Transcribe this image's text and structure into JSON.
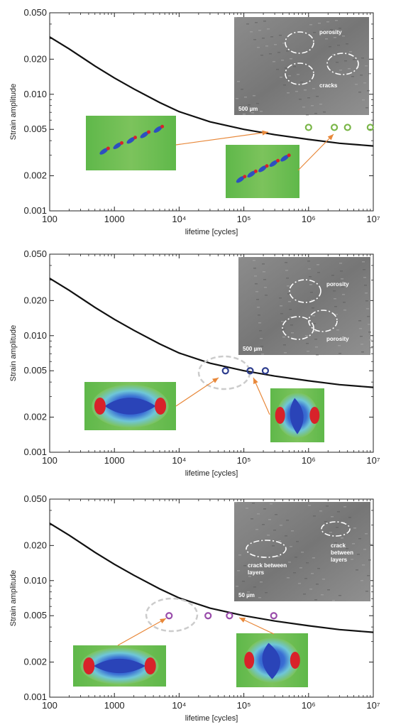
{
  "colors": {
    "curve": "#111111",
    "panel1_markers": "#7ab648",
    "panel2_markers": "#2f3f8f",
    "panel3_markers": "#9a4dab",
    "arrow": "#e8883a",
    "highlight_ellipse": "#cccccc"
  },
  "chart_data": [
    {
      "type": "scatter",
      "xscale": "log",
      "yscale": "log",
      "xlim": [
        100,
        10000000
      ],
      "ylim": [
        0.001,
        0.05
      ],
      "xlabel": "lifetime [cycles]",
      "ylabel": "Strain amplitude",
      "x_tick_labels": [
        "100",
        "1000",
        "10⁴",
        "10⁵",
        "10⁶",
        "10⁷"
      ],
      "y_tick_labels": [
        "0.001",
        "0.002",
        "0.005",
        "0.010",
        "0.020",
        "0.050"
      ],
      "curve": {
        "x": [
          100,
          200,
          500,
          1000,
          2000,
          5000,
          10000,
          30000,
          100000,
          300000,
          1000000,
          3000000,
          10000000
        ],
        "y": [
          0.031,
          0.0245,
          0.0175,
          0.0138,
          0.0111,
          0.0085,
          0.0071,
          0.0058,
          0.005,
          0.0045,
          0.0041,
          0.0038,
          0.0036
        ]
      },
      "points": {
        "x": [
          1000000,
          2500000,
          4000000,
          9000000
        ],
        "y": [
          0.0052,
          0.0052,
          0.0052,
          0.0052
        ]
      },
      "micrograph_annotations": [
        "porosity",
        "cracks"
      ],
      "scale_bar": "500 µm"
    },
    {
      "type": "scatter",
      "xscale": "log",
      "yscale": "log",
      "xlim": [
        100,
        10000000
      ],
      "ylim": [
        0.001,
        0.05
      ],
      "xlabel": "lifetime [cycles]",
      "ylabel": "Strain amplitude",
      "x_tick_labels": [
        "100",
        "1000",
        "10⁴",
        "10⁵",
        "10⁶",
        "10⁷"
      ],
      "y_tick_labels": [
        "0.001",
        "0.002",
        "0.005",
        "0.010",
        "0.020",
        "0.050"
      ],
      "curve": {
        "x": [
          100,
          200,
          500,
          1000,
          2000,
          5000,
          10000,
          30000,
          100000,
          300000,
          1000000,
          3000000,
          10000000
        ],
        "y": [
          0.031,
          0.0245,
          0.0175,
          0.0138,
          0.0111,
          0.0085,
          0.0071,
          0.0058,
          0.005,
          0.0045,
          0.0041,
          0.0038,
          0.0036
        ]
      },
      "points": {
        "x": [
          52000,
          125000,
          215000
        ],
        "y": [
          0.005,
          0.005,
          0.005
        ]
      },
      "micrograph_annotations": [
        "porosity",
        "porosity"
      ],
      "scale_bar": "500 µm"
    },
    {
      "type": "scatter",
      "xscale": "log",
      "yscale": "log",
      "xlim": [
        100,
        10000000
      ],
      "ylim": [
        0.001,
        0.05
      ],
      "xlabel": "lifetime [cycles]",
      "ylabel": "Strain amplitude",
      "x_tick_labels": [
        "100",
        "1000",
        "10⁴",
        "10⁵",
        "10⁶",
        "10⁷"
      ],
      "y_tick_labels": [
        "0.001",
        "0.002",
        "0.005",
        "0.010",
        "0.020",
        "0.050"
      ],
      "curve": {
        "x": [
          100,
          200,
          500,
          1000,
          2000,
          5000,
          10000,
          30000,
          100000,
          300000,
          1000000,
          3000000,
          10000000
        ],
        "y": [
          0.031,
          0.0245,
          0.0175,
          0.0138,
          0.0111,
          0.0085,
          0.0071,
          0.0058,
          0.005,
          0.0045,
          0.0041,
          0.0038,
          0.0036
        ]
      },
      "points": {
        "x": [
          7000,
          28000,
          60000,
          290000
        ],
        "y": [
          0.005,
          0.005,
          0.005,
          0.005
        ]
      },
      "micrograph_annotations": [
        "crack between layers",
        "crack between layers"
      ],
      "scale_bar": "50 µm"
    }
  ]
}
